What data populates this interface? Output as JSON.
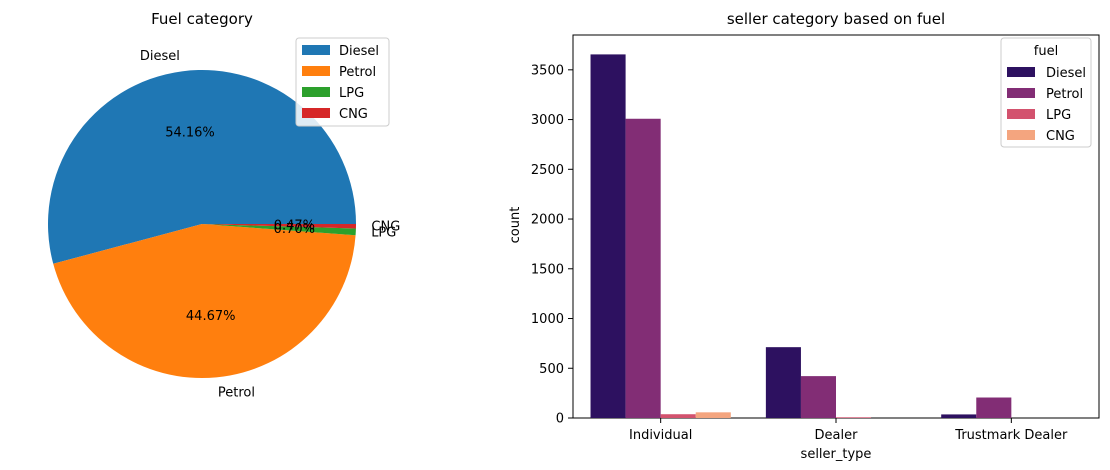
{
  "colors": {
    "pie": [
      "#1f77b4",
      "#ff7f0e",
      "#2ca02c",
      "#d62728"
    ],
    "bars": [
      "#2d1160",
      "#822d75",
      "#d3526e",
      "#f4a57f"
    ]
  },
  "chart_data": [
    {
      "type": "pie",
      "title": "Fuel category",
      "labels": [
        "Diesel",
        "Petrol",
        "LPG",
        "CNG"
      ],
      "values": [
        54.16,
        44.67,
        0.7,
        0.47
      ],
      "pct_labels": [
        "54.16%",
        "44.67%",
        "0.70%",
        "0.47%"
      ],
      "legend": {
        "entries": [
          "Diesel",
          "Petrol",
          "LPG",
          "CNG"
        ],
        "placement": "upper-right"
      }
    },
    {
      "type": "bar",
      "title": "seller category based on fuel",
      "xlabel": "seller_type",
      "ylabel": "count",
      "categories": [
        "Individual",
        "Dealer",
        "Trustmark Dealer"
      ],
      "series": [
        {
          "name": "Diesel",
          "values": [
            3655,
            712,
            36
          ]
        },
        {
          "name": "Petrol",
          "values": [
            3008,
            421,
            206
          ]
        },
        {
          "name": "LPG",
          "values": [
            38,
            7,
            0
          ]
        },
        {
          "name": "CNG",
          "values": [
            57,
            0,
            0
          ]
        }
      ],
      "ylim": [
        0,
        3850
      ],
      "yticks": [
        0,
        500,
        1000,
        1500,
        2000,
        2500,
        3000,
        3500
      ],
      "ytick_labels": [
        "0",
        "500",
        "1000",
        "1500",
        "2000",
        "2500",
        "3000",
        "3500"
      ],
      "legend": {
        "title": "fuel",
        "entries": [
          "Diesel",
          "Petrol",
          "LPG",
          "CNG"
        ],
        "placement": "upper-right"
      },
      "grid": false
    }
  ]
}
